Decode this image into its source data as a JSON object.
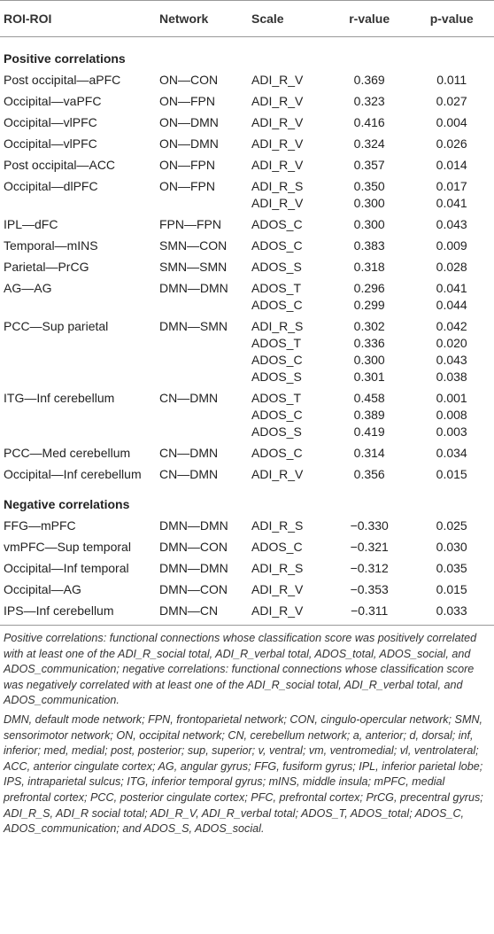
{
  "table": {
    "header": [
      "ROI-ROI",
      "Network",
      "Scale",
      "r-value",
      "p-value"
    ],
    "sections": [
      {
        "label": "Positive correlations",
        "groups": [
          {
            "roi": "Post occipital—aPFC",
            "network": "ON—CON",
            "rows": [
              [
                "ADI_R_V",
                "0.369",
                "0.011"
              ]
            ]
          },
          {
            "roi": "Occipital—vaPFC",
            "network": "ON—FPN",
            "rows": [
              [
                "ADI_R_V",
                "0.323",
                "0.027"
              ]
            ]
          },
          {
            "roi": "Occipital—vlPFC",
            "network": "ON—DMN",
            "rows": [
              [
                "ADI_R_V",
                "0.416",
                "0.004"
              ]
            ]
          },
          {
            "roi": "Occipital—vlPFC",
            "network": "ON—DMN",
            "rows": [
              [
                "ADI_R_V",
                "0.324",
                "0.026"
              ]
            ]
          },
          {
            "roi": "Post occipital—ACC",
            "network": "ON—FPN",
            "rows": [
              [
                "ADI_R_V",
                "0.357",
                "0.014"
              ]
            ]
          },
          {
            "roi": "Occipital—dlPFC",
            "network": "ON—FPN",
            "rows": [
              [
                "ADI_R_S",
                "0.350",
                "0.017"
              ],
              [
                "ADI_R_V",
                "0.300",
                "0.041"
              ]
            ]
          },
          {
            "roi": "IPL—dFC",
            "network": "FPN—FPN",
            "rows": [
              [
                "ADOS_C",
                "0.300",
                "0.043"
              ]
            ]
          },
          {
            "roi": "Temporal—mINS",
            "network": "SMN—CON",
            "rows": [
              [
                "ADOS_C",
                "0.383",
                "0.009"
              ]
            ]
          },
          {
            "roi": "Parietal—PrCG",
            "network": "SMN—SMN",
            "rows": [
              [
                "ADOS_S",
                "0.318",
                "0.028"
              ]
            ]
          },
          {
            "roi": "AG—AG",
            "network": "DMN—DMN",
            "rows": [
              [
                "ADOS_T",
                "0.296",
                "0.041"
              ],
              [
                "ADOS_C",
                "0.299",
                "0.044"
              ]
            ]
          },
          {
            "roi": "PCC—Sup parietal",
            "network": "DMN—SMN",
            "rows": [
              [
                "ADI_R_S",
                "0.302",
                "0.042"
              ],
              [
                "ADOS_T",
                "0.336",
                "0.020"
              ],
              [
                "ADOS_C",
                "0.300",
                "0.043"
              ],
              [
                "ADOS_S",
                "0.301",
                "0.038"
              ]
            ]
          },
          {
            "roi": "ITG—Inf cerebellum",
            "network": "CN—DMN",
            "rows": [
              [
                "ADOS_T",
                "0.458",
                "0.001"
              ],
              [
                "ADOS_C",
                "0.389",
                "0.008"
              ],
              [
                "ADOS_S",
                "0.419",
                "0.003"
              ]
            ]
          },
          {
            "roi": "PCC—Med cerebellum",
            "network": "CN—DMN",
            "rows": [
              [
                "ADOS_C",
                "0.314",
                "0.034"
              ]
            ]
          },
          {
            "roi": "Occipital—Inf cerebellum",
            "network": "CN—DMN",
            "rows": [
              [
                "ADI_R_V",
                "0.356",
                "0.015"
              ]
            ]
          }
        ]
      },
      {
        "label": "Negative correlations",
        "groups": [
          {
            "roi": "FFG—mPFC",
            "network": "DMN—DMN",
            "rows": [
              [
                "ADI_R_S",
                "−0.330",
                "0.025"
              ]
            ]
          },
          {
            "roi": "vmPFC—Sup temporal",
            "network": "DMN—CON",
            "rows": [
              [
                "ADOS_C",
                "−0.321",
                "0.030"
              ]
            ]
          },
          {
            "roi": "Occipital—Inf temporal",
            "network": "DMN—DMN",
            "rows": [
              [
                "ADI_R_S",
                "−0.312",
                "0.035"
              ]
            ]
          },
          {
            "roi": "Occipital—AG",
            "network": "DMN—CON",
            "rows": [
              [
                "ADI_R_V",
                "−0.353",
                "0.015"
              ]
            ]
          },
          {
            "roi": "IPS—Inf cerebellum",
            "network": "DMN—CN",
            "rows": [
              [
                "ADI_R_V",
                "−0.311",
                "0.033"
              ]
            ]
          }
        ]
      }
    ]
  },
  "footnotes": [
    "Positive correlations: functional connections whose classification score was positively correlated with at least one of the ADI_R_social total, ADI_R_verbal total, ADOS_total, ADOS_social, and ADOS_communication; negative correlations: functional connections whose classification score was negatively correlated with at least one of the ADI_R_social total, ADI_R_verbal total, and ADOS_communication.",
    "DMN, default mode network; FPN, frontoparietal network; CON, cingulo-opercular network; SMN, sensorimotor network; ON, occipital network; CN, cerebellum network; a, anterior; d, dorsal; inf, inferior; med, medial; post, posterior; sup, superior; v, ventral; vm, ventromedial; vl, ventrolateral; ACC, anterior cingulate cortex; AG, angular gyrus; FFG, fusiform gyrus; IPL, inferior parietal lobe; IPS, intraparietal sulcus; ITG, inferior temporal gyrus; mINS, middle insula; mPFC, medial prefrontal cortex; PCC, posterior cingulate cortex; PFC, prefrontal cortex; PrCG, precentral gyrus; ADI_R_S, ADI_R social total; ADI_R_V, ADI_R_verbal total; ADOS_T, ADOS_total; ADOS_C, ADOS_communication; and ADOS_S, ADOS_social."
  ]
}
